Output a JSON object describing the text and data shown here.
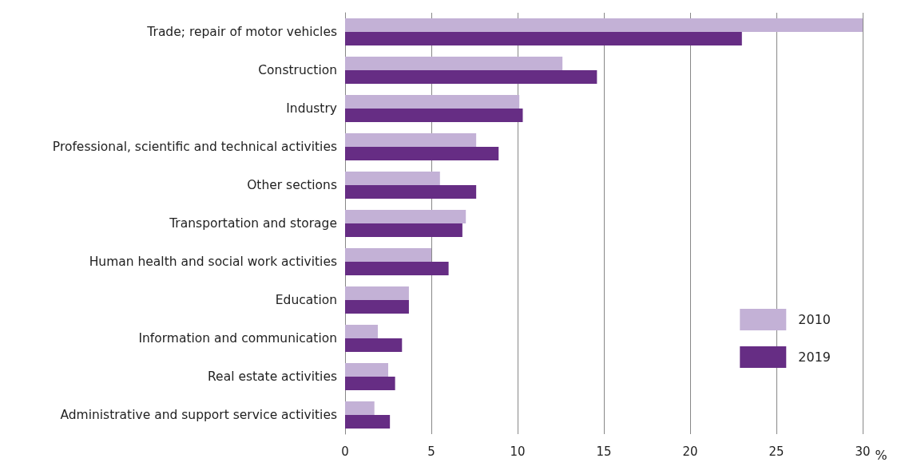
{
  "chart_data": {
    "type": "bar",
    "orientation": "horizontal",
    "categories": [
      "Trade; repair of motor vehicles",
      "Construction",
      "Industry",
      "Professional, scientific and technical activities",
      "Other sections",
      "Transportation and storage",
      "Human health and social work activities",
      "Education",
      "Information and communication",
      "Real estate activities",
      "Administrative and support service activities"
    ],
    "series": [
      {
        "name": "2010",
        "color": "#c3b1d6",
        "values": [
          30.0,
          12.6,
          10.1,
          7.6,
          5.5,
          7.0,
          5.0,
          3.7,
          1.9,
          2.5,
          1.7
        ]
      },
      {
        "name": "2019",
        "color": "#662d84",
        "values": [
          23.0,
          14.6,
          10.3,
          8.9,
          7.6,
          6.8,
          6.0,
          3.7,
          3.3,
          2.9,
          2.6
        ]
      }
    ],
    "xlabel": "%",
    "xlim": [
      0,
      30
    ],
    "xticks": [
      0,
      5,
      10,
      15,
      20,
      25,
      30
    ],
    "grid": "x",
    "legend": "bottom right"
  }
}
